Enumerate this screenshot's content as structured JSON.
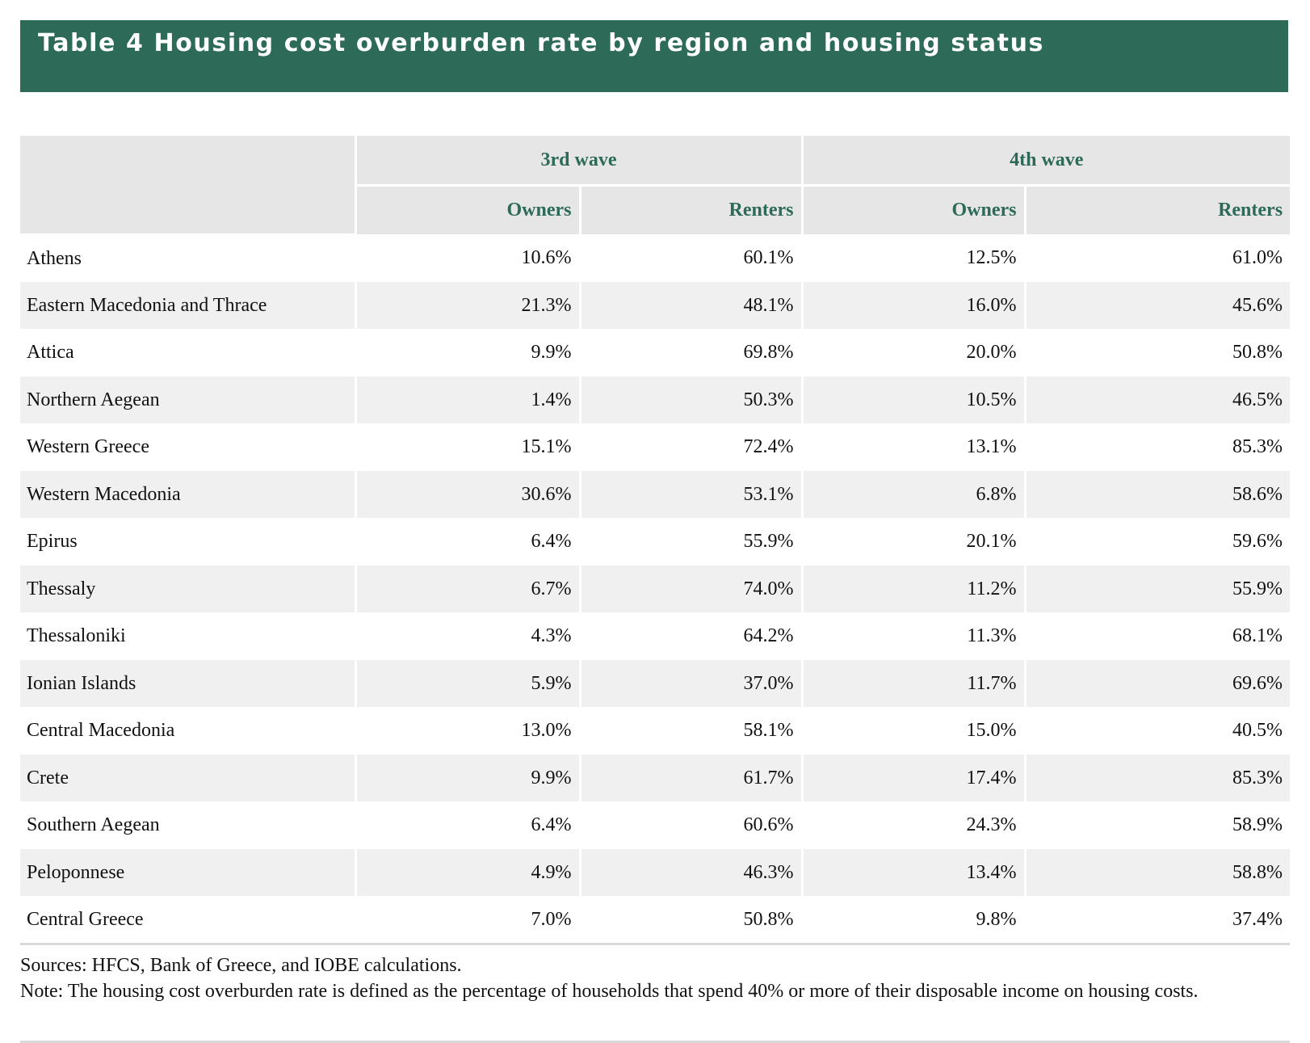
{
  "title": "Table 4 Housing cost overburden rate by region and housing status",
  "colors": {
    "banner": "#2d6a58",
    "header_text": "#2d6a58",
    "header_bg": "#e6e6e6",
    "stripe_bg": "#f0f0f0"
  },
  "table": {
    "waves": [
      "3rd wave",
      "4th wave"
    ],
    "subheaders": [
      "Owners",
      "Renters",
      "Owners",
      "Renters"
    ],
    "rows": [
      {
        "region": "Athens",
        "values": [
          "10.6%",
          "60.1%",
          "12.5%",
          "61.0%"
        ]
      },
      {
        "region": "Eastern Macedonia and Thrace",
        "values": [
          "21.3%",
          "48.1%",
          "16.0%",
          "45.6%"
        ]
      },
      {
        "region": "Attica",
        "values": [
          "9.9%",
          "69.8%",
          "20.0%",
          "50.8%"
        ]
      },
      {
        "region": "Northern Aegean",
        "values": [
          "1.4%",
          "50.3%",
          "10.5%",
          "46.5%"
        ]
      },
      {
        "region": "Western Greece",
        "values": [
          "15.1%",
          "72.4%",
          "13.1%",
          "85.3%"
        ]
      },
      {
        "region": "Western Macedonia",
        "values": [
          "30.6%",
          "53.1%",
          "6.8%",
          "58.6%"
        ]
      },
      {
        "region": "Epirus",
        "values": [
          "6.4%",
          "55.9%",
          "20.1%",
          "59.6%"
        ]
      },
      {
        "region": "Thessaly",
        "values": [
          "6.7%",
          "74.0%",
          "11.2%",
          "55.9%"
        ]
      },
      {
        "region": "Thessaloniki",
        "values": [
          "4.3%",
          "64.2%",
          "11.3%",
          "68.1%"
        ]
      },
      {
        "region": "Ionian Islands",
        "values": [
          "5.9%",
          "37.0%",
          "11.7%",
          "69.6%"
        ]
      },
      {
        "region": "Central Macedonia",
        "values": [
          "13.0%",
          "58.1%",
          "15.0%",
          "40.5%"
        ]
      },
      {
        "region": "Crete",
        "values": [
          "9.9%",
          "61.7%",
          "17.4%",
          "85.3%"
        ]
      },
      {
        "region": "Southern Aegean",
        "values": [
          "6.4%",
          "60.6%",
          "24.3%",
          "58.9%"
        ]
      },
      {
        "region": "Peloponnese",
        "values": [
          "4.9%",
          "46.3%",
          "13.4%",
          "58.8%"
        ]
      },
      {
        "region": "Central Greece",
        "values": [
          "7.0%",
          "50.8%",
          "9.8%",
          "37.4%"
        ]
      }
    ]
  },
  "footnotes": {
    "sources": "Sources: HFCS, Bank of Greece, and IOBE calculations.",
    "note": "Note: The housing cost overburden rate is defined as the percentage of households that spend 40% or more of their disposable income on housing costs."
  }
}
